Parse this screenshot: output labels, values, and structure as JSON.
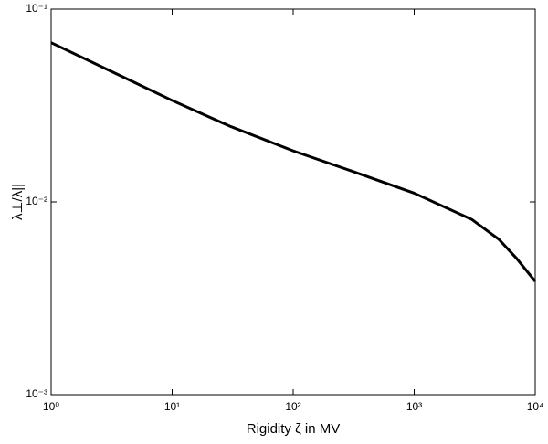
{
  "chart_data": {
    "type": "line",
    "x_label": "Rigidity ζ in MV",
    "y_label": "λ⊥/λ||",
    "x": [
      1,
      10,
      30,
      100,
      300,
      1000,
      3000,
      5000,
      7000,
      10000
    ],
    "series": [
      {
        "name": "λ⊥/λ||",
        "color": "#000000",
        "values": [
          0.067,
          0.0336,
          0.0247,
          0.0184,
          0.0145,
          0.0111,
          0.0081,
          0.0064,
          0.0051,
          0.00387
        ]
      }
    ],
    "xscale": "log",
    "yscale": "log",
    "xlim": [
      1,
      10000
    ],
    "ylim": [
      0.001,
      0.1
    ],
    "xticks": [
      {
        "value": 1,
        "label": "10⁰"
      },
      {
        "value": 10,
        "label": "10¹"
      },
      {
        "value": 100,
        "label": "10²"
      },
      {
        "value": 1000,
        "label": "10³"
      },
      {
        "value": 10000,
        "label": "10⁴"
      }
    ],
    "yticks": [
      {
        "value": 0.001,
        "label": "10⁻³"
      },
      {
        "value": 0.01,
        "label": "10⁻²"
      },
      {
        "value": 0.1,
        "label": "10⁻¹"
      }
    ],
    "grid": false
  }
}
